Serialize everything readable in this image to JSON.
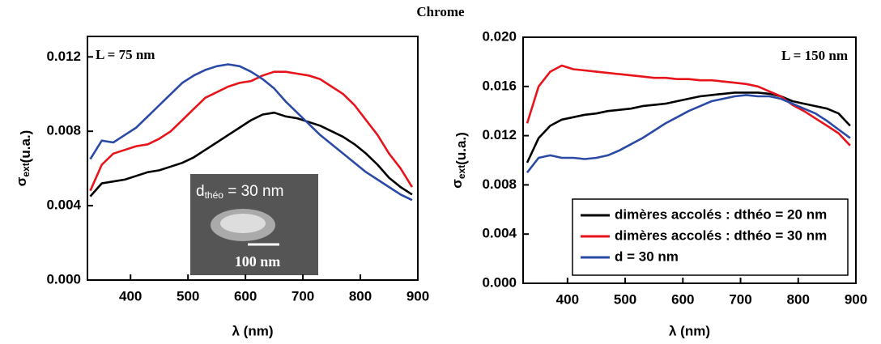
{
  "title": "Chrome",
  "chart_data": [
    {
      "type": "line",
      "annotation": "L = 75 nm",
      "annotation_position": "upper left",
      "x_label": "λ (nm)",
      "y_label": {
        "symbol": "σ",
        "subscript": "ext",
        "unit": "(u.a.)"
      },
      "xlim": [
        325,
        900
      ],
      "ylim": [
        0,
        0.0131
      ],
      "xticks": [
        400,
        500,
        600,
        700,
        800,
        900
      ],
      "yticks": [
        {
          "value": 0,
          "label": "0.000"
        },
        {
          "value": 0.004,
          "label": "0.004"
        },
        {
          "value": 0.008,
          "label": "0.008"
        },
        {
          "value": 0.012,
          "label": "0.012"
        }
      ],
      "x": [
        330,
        350,
        370,
        390,
        410,
        430,
        450,
        470,
        490,
        510,
        530,
        550,
        570,
        590,
        610,
        630,
        650,
        670,
        690,
        710,
        730,
        750,
        770,
        790,
        810,
        830,
        850,
        870,
        890
      ],
      "series": [
        {
          "color": "#000000",
          "values": [
            0.0045,
            0.0052,
            0.0053,
            0.0054,
            0.0056,
            0.0058,
            0.0059,
            0.0061,
            0.0063,
            0.0066,
            0.007,
            0.0074,
            0.0078,
            0.0082,
            0.0086,
            0.0089,
            0.009,
            0.0088,
            0.0087,
            0.0085,
            0.0083,
            0.008,
            0.0077,
            0.0073,
            0.0068,
            0.0062,
            0.0055,
            0.005,
            0.0046
          ]
        },
        {
          "color": "#e8141b",
          "values": [
            0.0048,
            0.0062,
            0.0068,
            0.007,
            0.0072,
            0.0073,
            0.0076,
            0.008,
            0.0086,
            0.0092,
            0.0098,
            0.0101,
            0.0104,
            0.0106,
            0.0107,
            0.011,
            0.0112,
            0.0112,
            0.0111,
            0.011,
            0.0108,
            0.0104,
            0.01,
            0.0094,
            0.0086,
            0.0078,
            0.0068,
            0.006,
            0.005
          ]
        },
        {
          "color": "#2b4aa6",
          "values": [
            0.0065,
            0.0075,
            0.0074,
            0.0078,
            0.0082,
            0.0088,
            0.0094,
            0.01,
            0.0106,
            0.011,
            0.0113,
            0.0115,
            0.0116,
            0.0115,
            0.0112,
            0.0108,
            0.0103,
            0.0096,
            0.009,
            0.0084,
            0.0078,
            0.0073,
            0.0068,
            0.0063,
            0.0058,
            0.0054,
            0.005,
            0.0046,
            0.0043
          ]
        }
      ],
      "inset": {
        "label": {
          "base": "d",
          "subscript": "théo",
          "rest": "= 30 nm"
        },
        "scale_bar": "100 nm"
      }
    },
    {
      "type": "line",
      "annotation": "L = 150 nm",
      "annotation_position": "upper right",
      "legend": "lower right",
      "x_label": "λ (nm)",
      "y_label": {
        "symbol": "σ",
        "subscript": "ext",
        "unit": "(u.a.)"
      },
      "xlim": [
        323,
        900
      ],
      "ylim": [
        0,
        0.02
      ],
      "xticks": [
        400,
        500,
        600,
        700,
        800,
        900
      ],
      "yticks": [
        {
          "value": 0,
          "label": "0.000"
        },
        {
          "value": 0.004,
          "label": "0.004"
        },
        {
          "value": 0.008,
          "label": "0.008"
        },
        {
          "value": 0.012,
          "label": "0.012"
        },
        {
          "value": 0.016,
          "label": "0.016"
        },
        {
          "value": 0.02,
          "label": "0.020"
        }
      ],
      "x": [
        330,
        350,
        370,
        390,
        410,
        430,
        450,
        470,
        490,
        510,
        530,
        550,
        570,
        590,
        610,
        630,
        650,
        670,
        690,
        710,
        730,
        750,
        770,
        790,
        810,
        830,
        850,
        870,
        890
      ],
      "series": [
        {
          "name": "dimères accolés : dthéo = 20 nm",
          "color": "#000000",
          "values": [
            0.0098,
            0.0118,
            0.0128,
            0.0133,
            0.0135,
            0.0137,
            0.0138,
            0.014,
            0.0141,
            0.0142,
            0.0144,
            0.0145,
            0.0146,
            0.0148,
            0.015,
            0.0152,
            0.0153,
            0.0154,
            0.0155,
            0.0155,
            0.0155,
            0.0154,
            0.0152,
            0.0148,
            0.0146,
            0.0144,
            0.0142,
            0.0138,
            0.0128
          ]
        },
        {
          "name": "dimères accolés : dthéo = 30 nm",
          "color": "#e8141b",
          "values": [
            0.013,
            0.016,
            0.0172,
            0.0177,
            0.0174,
            0.0173,
            0.0172,
            0.0171,
            0.017,
            0.0169,
            0.0168,
            0.0167,
            0.0167,
            0.0166,
            0.0166,
            0.0165,
            0.0165,
            0.0164,
            0.0163,
            0.0162,
            0.016,
            0.0156,
            0.0152,
            0.0145,
            0.014,
            0.0134,
            0.0128,
            0.0122,
            0.0112
          ]
        },
        {
          "name": "d = 30 nm",
          "color": "#2b4aa6",
          "values": [
            0.009,
            0.0102,
            0.0104,
            0.0102,
            0.0102,
            0.0101,
            0.0102,
            0.0104,
            0.0108,
            0.0113,
            0.0118,
            0.0124,
            0.013,
            0.0135,
            0.014,
            0.0144,
            0.0148,
            0.015,
            0.0152,
            0.0153,
            0.0152,
            0.0152,
            0.015,
            0.0146,
            0.0142,
            0.0138,
            0.0132,
            0.0125,
            0.0118
          ]
        }
      ]
    }
  ]
}
